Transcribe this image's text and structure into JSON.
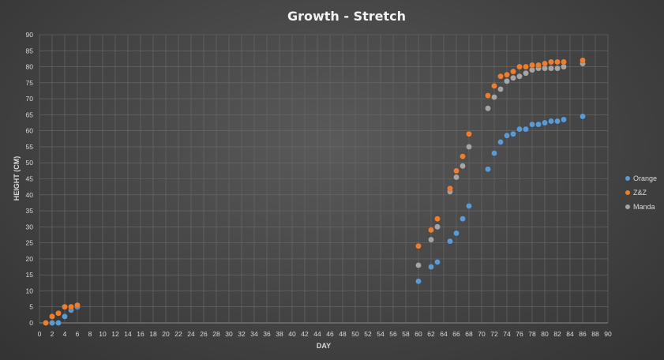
{
  "chart_data": {
    "type": "scatter",
    "title": "Growth - Stretch",
    "xlabel": "DAY",
    "ylabel": "HEIGHT (CM)",
    "xlim": [
      0,
      90
    ],
    "ylim": [
      0,
      90
    ],
    "xtick_step": 2,
    "ytick_step": 5,
    "grid": true,
    "legend_position": "right",
    "series": [
      {
        "name": "Orange",
        "color": "#5b9bd5",
        "points": [
          [
            1,
            0
          ],
          [
            2,
            0
          ],
          [
            3,
            0
          ],
          [
            4,
            2
          ],
          [
            5,
            4
          ],
          [
            6,
            5
          ],
          [
            60,
            13
          ],
          [
            62,
            17.5
          ],
          [
            63,
            19
          ],
          [
            65,
            25.5
          ],
          [
            66,
            28
          ],
          [
            67,
            32.5
          ],
          [
            68,
            36.5
          ],
          [
            71,
            48
          ],
          [
            72,
            53
          ],
          [
            73,
            56.5
          ],
          [
            74,
            58.5
          ],
          [
            75,
            59
          ],
          [
            76,
            60.5
          ],
          [
            77,
            60.5
          ],
          [
            78,
            62
          ],
          [
            79,
            62
          ],
          [
            80,
            62.5
          ],
          [
            81,
            63
          ],
          [
            82,
            63
          ],
          [
            83,
            63.5
          ],
          [
            86,
            64.5
          ]
        ]
      },
      {
        "name": "Z&Z",
        "color": "#ed7d31",
        "points": [
          [
            1,
            0
          ],
          [
            2,
            2
          ],
          [
            3,
            3
          ],
          [
            4,
            5
          ],
          [
            5,
            5
          ],
          [
            6,
            5.5
          ],
          [
            60,
            24
          ],
          [
            62,
            29
          ],
          [
            63,
            32.5
          ],
          [
            65,
            42
          ],
          [
            66,
            47.5
          ],
          [
            67,
            52
          ],
          [
            68,
            59
          ],
          [
            71,
            71
          ],
          [
            72,
            74
          ],
          [
            73,
            77
          ],
          [
            74,
            77.5
          ],
          [
            75,
            78.5
          ],
          [
            76,
            80
          ],
          [
            77,
            80
          ],
          [
            78,
            80.5
          ],
          [
            79,
            80.5
          ],
          [
            80,
            81
          ],
          [
            81,
            81.5
          ],
          [
            82,
            81.5
          ],
          [
            83,
            81.5
          ],
          [
            86,
            82
          ]
        ]
      },
      {
        "name": "Manda",
        "color": "#a5a5a5",
        "points": [
          [
            1,
            0
          ],
          [
            2,
            2
          ],
          [
            3,
            3
          ],
          [
            4,
            5
          ],
          [
            5,
            5
          ],
          [
            6,
            5.5
          ],
          [
            60,
            18
          ],
          [
            62,
            26
          ],
          [
            63,
            30
          ],
          [
            65,
            41
          ],
          [
            66,
            45.5
          ],
          [
            67,
            49
          ],
          [
            68,
            55
          ],
          [
            71,
            67
          ],
          [
            72,
            70.5
          ],
          [
            73,
            73
          ],
          [
            74,
            75.5
          ],
          [
            75,
            76.5
          ],
          [
            76,
            77
          ],
          [
            77,
            78
          ],
          [
            78,
            79
          ],
          [
            79,
            79.5
          ],
          [
            80,
            79.5
          ],
          [
            81,
            79.5
          ],
          [
            82,
            79.5
          ],
          [
            83,
            80
          ],
          [
            86,
            81
          ]
        ]
      }
    ]
  }
}
